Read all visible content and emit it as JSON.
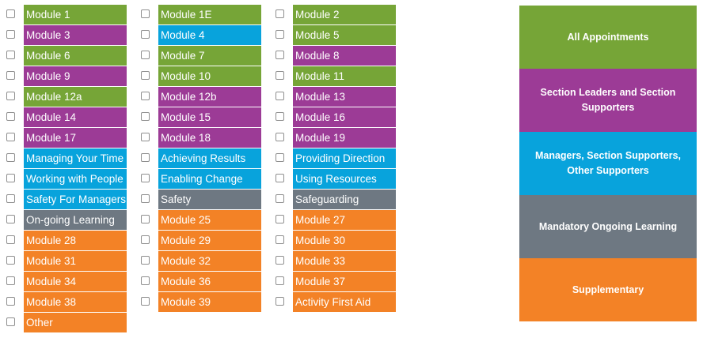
{
  "colors": {
    "green": "#76a537",
    "purple": "#9c3b96",
    "blue": "#08a3dc",
    "grey": "#6e7882",
    "orange": "#f38226"
  },
  "columns": [
    [
      {
        "label": "Module 1",
        "color": "green",
        "checked": false
      },
      {
        "label": "Module 3",
        "color": "purple",
        "checked": false
      },
      {
        "label": "Module 6",
        "color": "green",
        "checked": false
      },
      {
        "label": "Module 9",
        "color": "purple",
        "checked": false
      },
      {
        "label": "Module 12a",
        "color": "green",
        "checked": false
      },
      {
        "label": "Module 14",
        "color": "purple",
        "checked": false
      },
      {
        "label": "Module 17",
        "color": "purple",
        "checked": false
      },
      {
        "label": "Managing Your Time",
        "color": "blue",
        "checked": false
      },
      {
        "label": "Working with People",
        "color": "blue",
        "checked": false
      },
      {
        "label": "Safety For Managers",
        "color": "blue",
        "checked": false
      },
      {
        "label": "On-going Learning",
        "color": "grey",
        "checked": false
      },
      {
        "label": "Module 28",
        "color": "orange",
        "checked": false
      },
      {
        "label": "Module 31",
        "color": "orange",
        "checked": false
      },
      {
        "label": "Module 34",
        "color": "orange",
        "checked": false
      },
      {
        "label": "Module 38",
        "color": "orange",
        "checked": false
      },
      {
        "label": "Other",
        "color": "orange",
        "checked": false
      }
    ],
    [
      {
        "label": "Module 1E",
        "color": "green",
        "checked": false
      },
      {
        "label": "Module 4",
        "color": "blue",
        "checked": false
      },
      {
        "label": "Module 7",
        "color": "green",
        "checked": false
      },
      {
        "label": "Module 10",
        "color": "green",
        "checked": false
      },
      {
        "label": "Module 12b",
        "color": "purple",
        "checked": false
      },
      {
        "label": "Module 15",
        "color": "purple",
        "checked": false
      },
      {
        "label": "Module 18",
        "color": "purple",
        "checked": false
      },
      {
        "label": "Achieving Results",
        "color": "blue",
        "checked": false
      },
      {
        "label": "Enabling Change",
        "color": "blue",
        "checked": false
      },
      {
        "label": "Safety",
        "color": "grey",
        "checked": false
      },
      {
        "label": "Module 25",
        "color": "orange",
        "checked": false
      },
      {
        "label": "Module 29",
        "color": "orange",
        "checked": false
      },
      {
        "label": "Module 32",
        "color": "orange",
        "checked": false
      },
      {
        "label": "Module 36",
        "color": "orange",
        "checked": false
      },
      {
        "label": "Module 39",
        "color": "orange",
        "checked": false
      }
    ],
    [
      {
        "label": "Module 2",
        "color": "green",
        "checked": false
      },
      {
        "label": "Module 5",
        "color": "green",
        "checked": false
      },
      {
        "label": "Module 8",
        "color": "purple",
        "checked": false
      },
      {
        "label": "Module 11",
        "color": "green",
        "checked": false
      },
      {
        "label": "Module 13",
        "color": "purple",
        "checked": false
      },
      {
        "label": "Module 16",
        "color": "purple",
        "checked": false
      },
      {
        "label": "Module 19",
        "color": "purple",
        "checked": false
      },
      {
        "label": "Providing Direction",
        "color": "blue",
        "checked": false
      },
      {
        "label": "Using Resources",
        "color": "blue",
        "checked": false
      },
      {
        "label": "Safeguarding",
        "color": "grey",
        "checked": false
      },
      {
        "label": "Module 27",
        "color": "orange",
        "checked": false
      },
      {
        "label": "Module 30",
        "color": "orange",
        "checked": false
      },
      {
        "label": "Module 33",
        "color": "orange",
        "checked": false
      },
      {
        "label": "Module 37",
        "color": "orange",
        "checked": false
      },
      {
        "label": "Activity First Aid",
        "color": "orange",
        "checked": false
      }
    ]
  ],
  "legend": [
    {
      "label": "All Appointments",
      "color": "green"
    },
    {
      "label": "Section Leaders and Section Supporters",
      "color": "purple"
    },
    {
      "label": "Managers, Section Supporters, Other Supporters",
      "color": "blue"
    },
    {
      "label": "Mandatory Ongoing Learning",
      "color": "grey"
    },
    {
      "label": "Supplementary",
      "color": "orange"
    }
  ]
}
